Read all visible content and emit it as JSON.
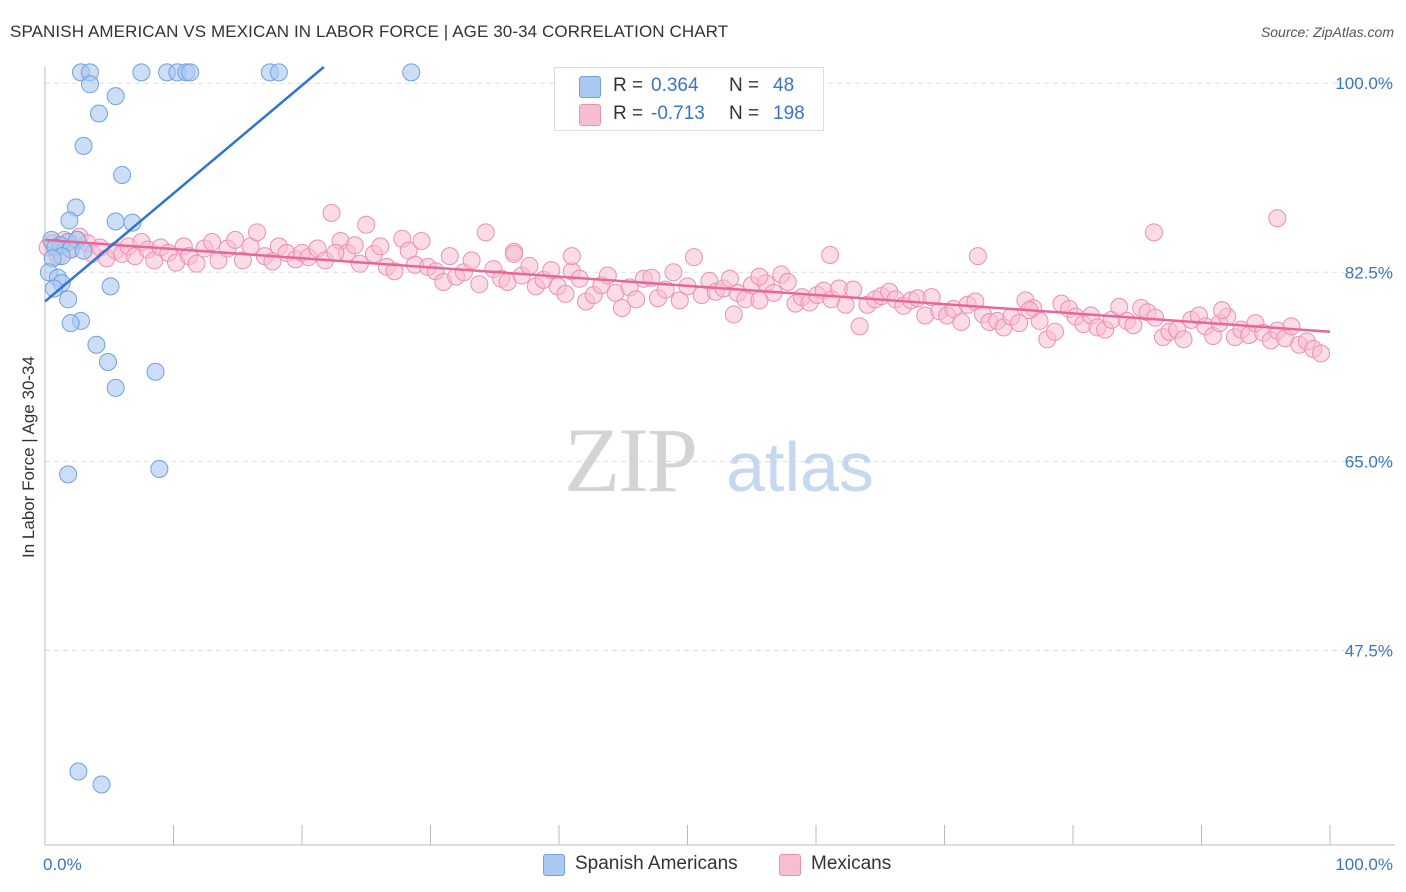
{
  "title": "SPANISH AMERICAN VS MEXICAN IN LABOR FORCE | AGE 30-34 CORRELATION CHART",
  "source": "Source: ZipAtlas.com",
  "watermark": {
    "zip": "ZIP",
    "atlas": "atlas"
  },
  "colors": {
    "blue_fill": "#aac8f0",
    "blue_stroke": "#6fa0e0",
    "blue_line": "#2e74d0",
    "pink_fill": "#f7bed1",
    "pink_stroke": "#ee8fb0",
    "pink_line": "#e8679a",
    "axis_label": "#3a74c6",
    "grid": "#dddddd"
  },
  "stats": [
    {
      "r_label": "R =",
      "r_value": "0.364",
      "n_label": "N =",
      "n_value": "48",
      "color": "blue"
    },
    {
      "r_label": "R =",
      "r_value": "-0.713",
      "n_label": "N =",
      "n_value": "198",
      "color": "pink"
    }
  ],
  "legend": [
    {
      "label": "Spanish Americans",
      "color": "blue"
    },
    {
      "label": "Mexicans",
      "color": "pink"
    }
  ],
  "chart_data": {
    "type": "scatter",
    "title": "SPANISH AMERICAN VS MEXICAN IN LABOR FORCE | AGE 30-34 CORRELATION CHART",
    "xlabel": "",
    "ylabel": "In Labor Force | Age 30-34",
    "xlim": [
      0,
      100
    ],
    "ylim": [
      29.5,
      101.5
    ],
    "x_tick_labels": [
      "0.0%",
      "100.0%"
    ],
    "y_tick_labels": [
      "100.0%",
      "82.5%",
      "65.0%",
      "47.5%"
    ],
    "y_ticks": [
      100.0,
      82.5,
      65.0,
      47.5
    ],
    "grid": true,
    "legend_position": "bottom",
    "series": [
      {
        "name": "Spanish Americans",
        "r": 0.364,
        "n": 48,
        "trend": {
          "x": [
            0.0,
            21.7
          ],
          "y": [
            79.8,
            101.5
          ]
        },
        "points": [
          [
            2.8,
            101.0
          ],
          [
            3.5,
            101.0
          ],
          [
            7.5,
            101.0
          ],
          [
            9.5,
            101.0
          ],
          [
            10.3,
            101.0
          ],
          [
            11.0,
            101.0
          ],
          [
            11.3,
            101.0
          ],
          [
            17.5,
            101.0
          ],
          [
            18.2,
            101.0
          ],
          [
            28.5,
            101.0
          ],
          [
            3.5,
            99.9
          ],
          [
            5.5,
            98.8
          ],
          [
            4.2,
            97.2
          ],
          [
            3.0,
            94.2
          ],
          [
            6.0,
            91.5
          ],
          [
            2.4,
            88.5
          ],
          [
            1.9,
            87.3
          ],
          [
            5.5,
            87.2
          ],
          [
            6.8,
            87.1
          ],
          [
            0.5,
            85.5
          ],
          [
            1.8,
            85.3
          ],
          [
            2.5,
            85.5
          ],
          [
            1.2,
            85.0
          ],
          [
            0.8,
            84.8
          ],
          [
            2.0,
            84.6
          ],
          [
            3.0,
            84.5
          ],
          [
            1.3,
            84.0
          ],
          [
            0.6,
            83.8
          ],
          [
            0.3,
            82.5
          ],
          [
            1.0,
            82.0
          ],
          [
            1.3,
            81.5
          ],
          [
            0.7,
            81.0
          ],
          [
            5.1,
            81.2
          ],
          [
            1.8,
            80.0
          ],
          [
            2.8,
            78.0
          ],
          [
            2.0,
            77.8
          ],
          [
            4.0,
            75.8
          ],
          [
            4.9,
            74.2
          ],
          [
            8.6,
            73.3
          ],
          [
            5.5,
            71.8
          ],
          [
            1.8,
            63.8
          ],
          [
            8.9,
            64.3
          ],
          [
            2.6,
            36.3
          ],
          [
            4.4,
            35.1
          ]
        ]
      },
      {
        "name": "Mexicans",
        "r": -0.713,
        "n": 198,
        "trend": {
          "x": [
            0.0,
            100.0
          ],
          "y": [
            85.5,
            77.0
          ]
        },
        "points": [
          [
            0.2,
            84.8
          ],
          [
            0.6,
            85.2
          ],
          [
            1.0,
            84.0
          ],
          [
            1.5,
            85.5
          ],
          [
            2.0,
            84.6
          ],
          [
            2.7,
            85.8
          ],
          [
            3.3,
            85.2
          ],
          [
            3.7,
            84.2
          ],
          [
            4.3,
            84.8
          ],
          [
            4.8,
            83.8
          ],
          [
            5.5,
            84.5
          ],
          [
            6.0,
            84.2
          ],
          [
            6.5,
            84.9
          ],
          [
            7.0,
            84.0
          ],
          [
            7.5,
            85.3
          ],
          [
            8.0,
            84.6
          ],
          [
            8.5,
            83.6
          ],
          [
            9.0,
            84.8
          ],
          [
            9.6,
            84.3
          ],
          [
            10.2,
            83.4
          ],
          [
            10.8,
            84.9
          ],
          [
            11.2,
            84.0
          ],
          [
            11.8,
            83.3
          ],
          [
            12.4,
            84.7
          ],
          [
            13.0,
            85.3
          ],
          [
            13.5,
            83.6
          ],
          [
            14.2,
            84.7
          ],
          [
            14.8,
            85.5
          ],
          [
            15.4,
            83.6
          ],
          [
            16.0,
            84.9
          ],
          [
            16.5,
            86.2
          ],
          [
            17.1,
            84.0
          ],
          [
            17.7,
            83.5
          ],
          [
            18.2,
            84.9
          ],
          [
            18.8,
            84.3
          ],
          [
            19.5,
            83.7
          ],
          [
            20.0,
            84.3
          ],
          [
            20.5,
            83.9
          ],
          [
            21.2,
            84.7
          ],
          [
            21.8,
            83.6
          ],
          [
            22.3,
            88.0
          ],
          [
            23.0,
            85.4
          ],
          [
            23.5,
            84.3
          ],
          [
            24.1,
            85.0
          ],
          [
            24.5,
            83.3
          ],
          [
            25.0,
            86.9
          ],
          [
            25.6,
            84.2
          ],
          [
            26.1,
            84.9
          ],
          [
            26.6,
            83.0
          ],
          [
            27.2,
            82.6
          ],
          [
            27.8,
            85.6
          ],
          [
            28.3,
            84.5
          ],
          [
            28.8,
            83.2
          ],
          [
            29.3,
            85.4
          ],
          [
            29.8,
            83.0
          ],
          [
            30.4,
            82.6
          ],
          [
            31.0,
            81.6
          ],
          [
            31.5,
            84.0
          ],
          [
            32.0,
            82.1
          ],
          [
            32.6,
            82.5
          ],
          [
            33.2,
            83.6
          ],
          [
            33.8,
            81.4
          ],
          [
            34.3,
            86.2
          ],
          [
            34.9,
            82.8
          ],
          [
            35.5,
            81.9
          ],
          [
            36.0,
            81.6
          ],
          [
            36.5,
            84.4
          ],
          [
            37.1,
            82.2
          ],
          [
            37.7,
            83.1
          ],
          [
            38.2,
            81.2
          ],
          [
            38.8,
            81.8
          ],
          [
            39.4,
            82.7
          ],
          [
            39.9,
            81.2
          ],
          [
            40.5,
            80.5
          ],
          [
            41.0,
            82.6
          ],
          [
            41.6,
            81.9
          ],
          [
            42.1,
            79.8
          ],
          [
            42.7,
            80.4
          ],
          [
            43.3,
            81.3
          ],
          [
            43.8,
            82.2
          ],
          [
            44.4,
            80.6
          ],
          [
            44.9,
            79.2
          ],
          [
            45.5,
            81.1
          ],
          [
            46.0,
            80.0
          ],
          [
            46.6,
            81.9
          ],
          [
            47.2,
            82.0
          ],
          [
            47.7,
            80.1
          ],
          [
            48.3,
            80.9
          ],
          [
            48.9,
            82.5
          ],
          [
            49.4,
            79.9
          ],
          [
            50.0,
            81.2
          ],
          [
            50.5,
            83.9
          ],
          [
            51.1,
            80.4
          ],
          [
            51.7,
            81.7
          ],
          [
            52.2,
            80.7
          ],
          [
            52.8,
            81.0
          ],
          [
            53.3,
            81.9
          ],
          [
            53.9,
            80.6
          ],
          [
            54.5,
            80.0
          ],
          [
            55.0,
            81.3
          ],
          [
            55.6,
            79.9
          ],
          [
            56.1,
            81.5
          ],
          [
            56.7,
            80.6
          ],
          [
            57.3,
            82.3
          ],
          [
            57.8,
            81.6
          ],
          [
            58.4,
            79.6
          ],
          [
            58.9,
            80.2
          ],
          [
            59.5,
            79.7
          ],
          [
            60.1,
            80.4
          ],
          [
            60.6,
            80.8
          ],
          [
            61.2,
            80.0
          ],
          [
            61.8,
            81.0
          ],
          [
            62.3,
            79.5
          ],
          [
            62.9,
            80.9
          ],
          [
            63.4,
            77.5
          ],
          [
            64.0,
            79.5
          ],
          [
            64.6,
            80.0
          ],
          [
            65.1,
            80.3
          ],
          [
            65.7,
            80.7
          ],
          [
            66.2,
            80.0
          ],
          [
            66.8,
            79.4
          ],
          [
            67.4,
            79.9
          ],
          [
            67.9,
            80.1
          ],
          [
            68.5,
            78.5
          ],
          [
            69.0,
            80.2
          ],
          [
            69.6,
            78.9
          ],
          [
            70.2,
            78.5
          ],
          [
            70.7,
            79.1
          ],
          [
            71.3,
            77.9
          ],
          [
            71.8,
            79.5
          ],
          [
            72.4,
            79.8
          ],
          [
            73.0,
            78.6
          ],
          [
            73.5,
            77.9
          ],
          [
            74.1,
            78.0
          ],
          [
            74.6,
            77.4
          ],
          [
            75.2,
            78.4
          ],
          [
            75.8,
            77.8
          ],
          [
            76.3,
            79.9
          ],
          [
            76.9,
            79.2
          ],
          [
            77.4,
            78.0
          ],
          [
            78.0,
            76.3
          ],
          [
            78.6,
            77.0
          ],
          [
            79.1,
            79.6
          ],
          [
            79.7,
            79.1
          ],
          [
            80.2,
            78.4
          ],
          [
            80.8,
            77.7
          ],
          [
            81.4,
            78.5
          ],
          [
            81.9,
            77.4
          ],
          [
            82.5,
            77.2
          ],
          [
            83.0,
            78.1
          ],
          [
            83.6,
            79.3
          ],
          [
            84.2,
            78.0
          ],
          [
            84.7,
            77.6
          ],
          [
            85.3,
            79.2
          ],
          [
            85.8,
            78.8
          ],
          [
            86.4,
            78.3
          ],
          [
            87.0,
            76.5
          ],
          [
            87.5,
            77.0
          ],
          [
            88.1,
            77.2
          ],
          [
            88.6,
            76.3
          ],
          [
            89.2,
            78.1
          ],
          [
            89.8,
            78.5
          ],
          [
            90.3,
            77.5
          ],
          [
            90.9,
            76.6
          ],
          [
            91.4,
            77.8
          ],
          [
            92.0,
            78.4
          ],
          [
            92.6,
            76.5
          ],
          [
            93.1,
            77.2
          ],
          [
            93.7,
            76.7
          ],
          [
            94.2,
            77.8
          ],
          [
            94.8,
            76.9
          ],
          [
            95.4,
            76.2
          ],
          [
            95.9,
            77.1
          ],
          [
            96.5,
            76.4
          ],
          [
            97.0,
            77.5
          ],
          [
            97.6,
            75.8
          ],
          [
            98.2,
            76.1
          ],
          [
            98.7,
            75.4
          ],
          [
            99.3,
            75.0
          ],
          [
            22.6,
            84.3
          ],
          [
            36.5,
            84.2
          ],
          [
            55.6,
            82.1
          ],
          [
            72.6,
            84.0
          ],
          [
            86.3,
            86.2
          ],
          [
            95.9,
            87.5
          ],
          [
            61.1,
            84.1
          ],
          [
            41.0,
            84.0
          ],
          [
            76.6,
            79.0
          ],
          [
            53.6,
            78.6
          ],
          [
            91.6,
            79.0
          ]
        ]
      }
    ]
  },
  "axes": {
    "ylabel": "In Labor Force | Age 30-34",
    "x_left": "0.0%",
    "x_right": "100.0%",
    "y_ticks": [
      "100.0%",
      "82.5%",
      "65.0%",
      "47.5%"
    ]
  }
}
